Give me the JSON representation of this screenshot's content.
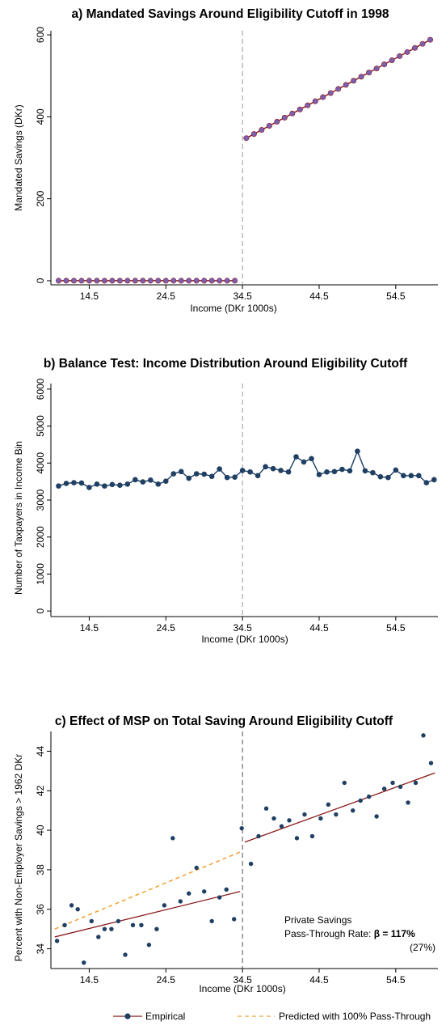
{
  "chart_data": [
    {
      "id": "a",
      "type": "scatter",
      "title": "a) Mandated Savings Around Eligibility Cutoff in 1998",
      "xlabel": "Income (DKr 1000s)",
      "ylabel": "Mandated Savings (DKr)",
      "xticks": [
        "14.5",
        "24.5",
        "34.5",
        "44.5",
        "54.5"
      ],
      "yticks": [
        "0",
        "200",
        "400",
        "600"
      ],
      "xlim": [
        9.5,
        60
      ],
      "ylim": [
        -10,
        610
      ],
      "cutoff": 34.5,
      "colors": {
        "line": "#8b1a1a",
        "marker": "#7b5fb0",
        "cutoff": "#999999"
      },
      "series": [
        {
          "x": [
            10.5,
            11.5,
            12.5,
            13.5,
            14.5,
            15.5,
            16.5,
            17.5,
            18.5,
            19.5,
            20.5,
            21.5,
            22.5,
            23.5,
            24.5,
            25.5,
            26.5,
            27.5,
            28.5,
            29.5,
            30.5,
            31.5,
            32.5,
            33.5
          ],
          "y": [
            0,
            0,
            0,
            0,
            0,
            0,
            0,
            0,
            0,
            0,
            0,
            0,
            0,
            0,
            0,
            0,
            0,
            0,
            0,
            0,
            0,
            0,
            0,
            0
          ]
        },
        {
          "x": [
            35.0,
            36.0,
            37.0,
            38.0,
            39.0,
            40.0,
            41.0,
            42.0,
            43.0,
            44.0,
            45.0,
            46.0,
            47.0,
            48.0,
            49.0,
            50.0,
            51.0,
            52.0,
            53.0,
            54.0,
            55.0,
            56.0,
            57.0,
            58.0,
            59.0
          ],
          "y": [
            348,
            358,
            368,
            378,
            388,
            398,
            408,
            418,
            428,
            438,
            448,
            458,
            468,
            478,
            488,
            498,
            508,
            518,
            528,
            538,
            548,
            558,
            568,
            578,
            588
          ]
        }
      ]
    },
    {
      "id": "b",
      "type": "line",
      "title": "b) Balance Test: Income Distribution Around Eligibility Cutoff",
      "xlabel": "Income (DKr 1000s)",
      "ylabel": "Number of Taxpayers in Income Bin",
      "xticks": [
        "14.5",
        "24.5",
        "34.5",
        "44.5",
        "54.5"
      ],
      "yticks": [
        "0",
        "1000",
        "2000",
        "3000",
        "4000",
        "5000",
        "6000"
      ],
      "xlim": [
        9.5,
        60
      ],
      "ylim": [
        -150,
        6150
      ],
      "cutoff": 34.5,
      "colors": {
        "line": "#1f3f63",
        "marker": "#1f3f63",
        "cutoff": "#999999"
      },
      "x": [
        10.5,
        11.5,
        12.5,
        13.5,
        14.5,
        15.5,
        16.5,
        17.5,
        18.5,
        19.5,
        20.5,
        21.5,
        22.5,
        23.5,
        24.5,
        25.5,
        26.5,
        27.5,
        28.5,
        29.5,
        30.5,
        31.5,
        32.5,
        33.5,
        34.5,
        35.5,
        36.5,
        37.5,
        38.5,
        39.5,
        40.5,
        41.5,
        42.5,
        43.5,
        44.5,
        45.5,
        46.5,
        47.5,
        48.5,
        49.5,
        50.5,
        51.5,
        52.5,
        53.5,
        54.5,
        55.5,
        56.5,
        57.5,
        58.5,
        59.5
      ],
      "y": [
        3380,
        3450,
        3470,
        3460,
        3340,
        3430,
        3380,
        3420,
        3400,
        3430,
        3550,
        3490,
        3540,
        3430,
        3510,
        3710,
        3770,
        3590,
        3710,
        3700,
        3640,
        3840,
        3610,
        3620,
        3800,
        3760,
        3660,
        3900,
        3850,
        3800,
        3760,
        4170,
        4030,
        4120,
        3690,
        3760,
        3770,
        3830,
        3790,
        4320,
        3790,
        3740,
        3630,
        3610,
        3810,
        3660,
        3660,
        3660,
        3470,
        3550
      ]
    },
    {
      "id": "c",
      "type": "scatter",
      "title": "c) Effect of MSP on Total Saving Around Eligibility Cutoff",
      "xlabel": "Income (DKr 1000s)",
      "ylabel": "Percent with Non-Employer Savings > 1962 DKr",
      "xticks": [
        "14.5",
        "24.5",
        "34.5",
        "44.5",
        "54.5"
      ],
      "yticks": [
        "34",
        "36",
        "38",
        "40",
        "42",
        "44"
      ],
      "xlim": [
        9.5,
        60
      ],
      "ylim": [
        33,
        45
      ],
      "cutoff": 34.5,
      "colors": {
        "fit": "#8b1a1a",
        "marker": "#1f3f63",
        "predicted": "#f0a030",
        "cutoff": "#555555"
      },
      "points": {
        "x": [
          10.3,
          11.3,
          12.2,
          13.0,
          13.8,
          14.8,
          15.7,
          16.5,
          17.4,
          18.3,
          19.2,
          20.2,
          21.3,
          22.3,
          23.3,
          24.3,
          25.4,
          26.4,
          27.5,
          28.5,
          29.5,
          30.5,
          31.5,
          32.4,
          33.4,
          34.4,
          35.6,
          36.6,
          37.6,
          38.6,
          39.6,
          40.6,
          41.6,
          42.6,
          43.6,
          44.7,
          45.7,
          46.7,
          47.8,
          48.9,
          49.9,
          51.0,
          52.0,
          53.0,
          54.1,
          55.1,
          56.1,
          57.1,
          58.1,
          59.1
        ],
        "y": [
          34.4,
          35.2,
          36.2,
          36.0,
          33.3,
          35.4,
          34.6,
          35.0,
          35.0,
          35.4,
          33.7,
          35.2,
          35.2,
          34.2,
          35.0,
          36.2,
          39.6,
          36.4,
          36.8,
          38.1,
          36.9,
          35.4,
          36.6,
          37.0,
          35.5,
          40.1,
          38.3,
          39.7,
          41.1,
          40.6,
          40.2,
          40.5,
          39.6,
          40.8,
          39.7,
          40.6,
          41.3,
          40.8,
          42.4,
          41.0,
          41.5,
          41.7,
          40.7,
          42.1,
          42.4,
          42.2,
          41.4,
          42.4,
          44.8,
          43.4
        ]
      },
      "fit_left": {
        "x": [
          10.0,
          34.2
        ],
        "y": [
          34.6,
          36.9
        ]
      },
      "fit_right": {
        "x": [
          34.8,
          59.6
        ],
        "y": [
          39.4,
          42.9
        ]
      },
      "predicted": {
        "x": [
          10.0,
          34.2
        ],
        "y": [
          35.0,
          38.9
        ]
      },
      "annotation": {
        "line1": "Private Savings",
        "line2": "Pass-Through Rate: ",
        "beta": "β = 117%",
        "se": "(27%)"
      },
      "legend": [
        "Empirical",
        "Predicted with 100% Pass-Through"
      ]
    }
  ]
}
